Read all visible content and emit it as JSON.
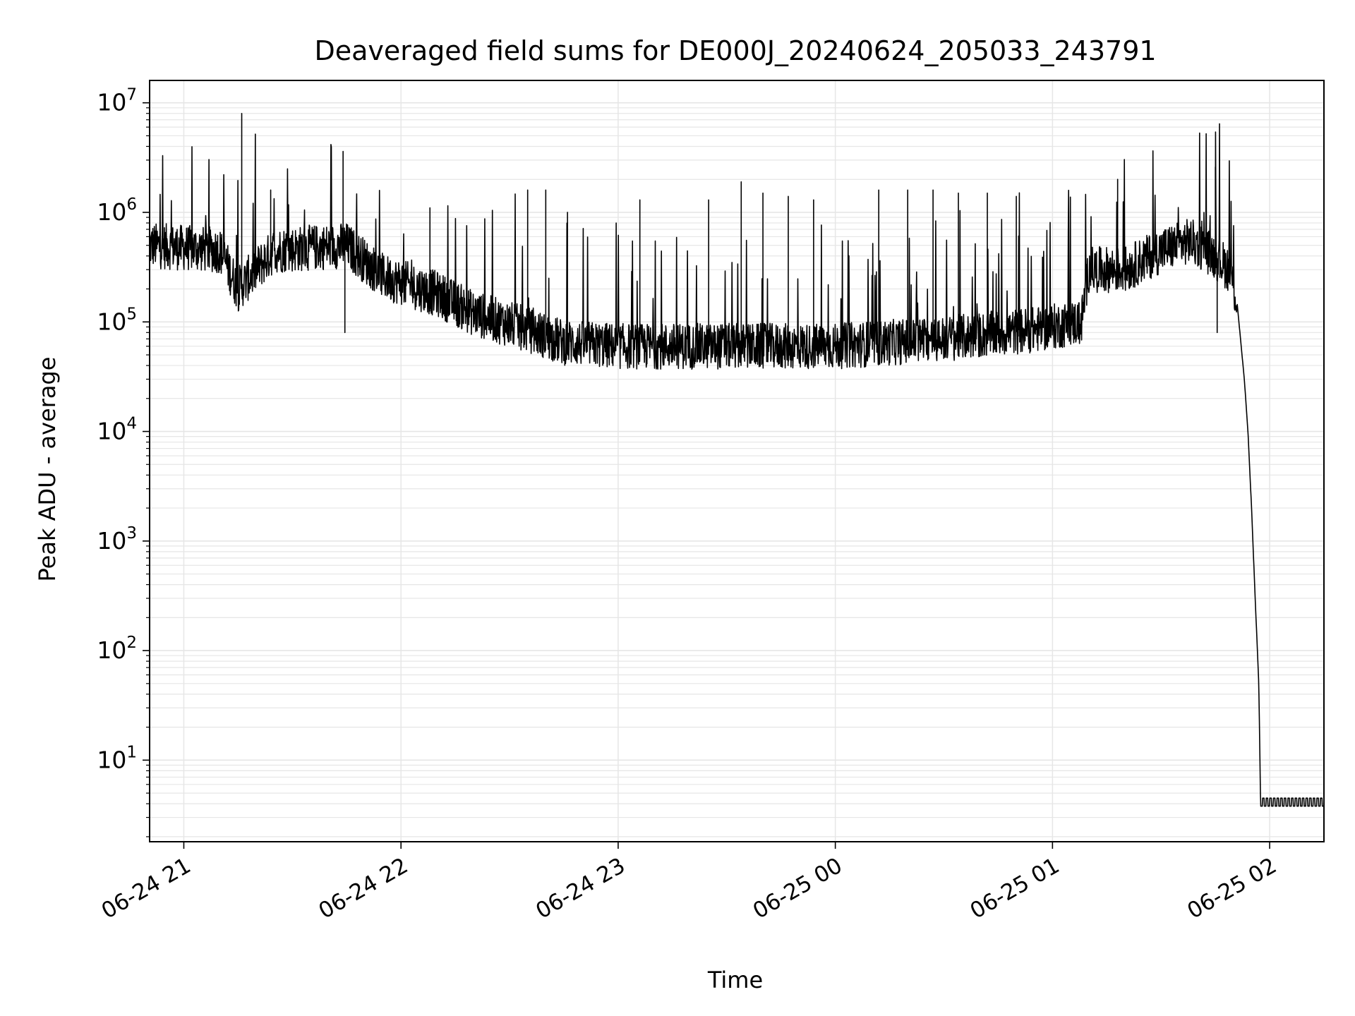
{
  "chart_data": {
    "type": "line",
    "title": "Deaveraged field sums for DE000J_20240624_205033_243791",
    "xlabel": "Time",
    "ylabel": "Peak ADU - average",
    "yscale": "log",
    "xlim": [
      "2024-06-24 20:50:33",
      "2024-06-25 02:15:00"
    ],
    "ylim": [
      1.8,
      16000000
    ],
    "grid": true,
    "grid_minor": true,
    "line_color": "#000000",
    "grid_color": "#e6e6e6",
    "x_ticks": [
      {
        "label": "06-24 21",
        "value": "2024-06-24 21:00"
      },
      {
        "label": "06-24 22",
        "value": "2024-06-24 22:00"
      },
      {
        "label": "06-24 23",
        "value": "2024-06-24 23:00"
      },
      {
        "label": "06-25 00",
        "value": "2024-06-25 00:00"
      },
      {
        "label": "06-25 01",
        "value": "2024-06-25 01:00"
      },
      {
        "label": "06-25 02",
        "value": "2024-06-25 02:00"
      }
    ],
    "y_ticks": [
      {
        "base": "10",
        "exp": "1",
        "value": 10
      },
      {
        "base": "10",
        "exp": "2",
        "value": 100
      },
      {
        "base": "10",
        "exp": "3",
        "value": 1000
      },
      {
        "base": "10",
        "exp": "4",
        "value": 10000
      },
      {
        "base": "10",
        "exp": "5",
        "value": 100000
      },
      {
        "base": "10",
        "exp": "6",
        "value": 1000000
      },
      {
        "base": "10",
        "exp": "7",
        "value": 10000000
      }
    ],
    "series": [
      {
        "baseline": [
          [
            "2024-06-24 20:50:33",
            500000
          ],
          [
            "2024-06-24 21:10",
            450000
          ],
          [
            "2024-06-24 21:15",
            200000
          ],
          [
            "2024-06-24 21:25",
            450000
          ],
          [
            "2024-06-24 21:45",
            500000
          ],
          [
            "2024-06-24 21:55",
            260000
          ],
          [
            "2024-06-24 22:10",
            180000
          ],
          [
            "2024-06-24 22:20",
            120000
          ],
          [
            "2024-06-24 22:35",
            85000
          ],
          [
            "2024-06-24 22:45",
            65000
          ],
          [
            "2024-06-24 23:00",
            60000
          ],
          [
            "2024-06-24 23:30",
            60000
          ],
          [
            "2024-06-25 00:00",
            60000
          ],
          [
            "2024-06-25 00:30",
            70000
          ],
          [
            "2024-06-25 00:55",
            85000
          ],
          [
            "2024-06-25 01:08",
            100000
          ],
          [
            "2024-06-25 01:10",
            300000
          ],
          [
            "2024-06-25 01:20",
            300000
          ],
          [
            "2024-06-25 01:30",
            450000
          ],
          [
            "2024-06-25 01:38",
            550000
          ],
          [
            "2024-06-25 01:44",
            420000
          ],
          [
            "2024-06-25 01:49",
            300000
          ],
          [
            "2024-06-25 01:51",
            150000
          ],
          [
            "2024-06-25 01:53",
            30000
          ],
          [
            "2024-06-25 01:54",
            10000
          ],
          [
            "2024-06-25 01:55",
            2000
          ],
          [
            "2024-06-25 01:56",
            300
          ],
          [
            "2024-06-25 01:57",
            50
          ],
          [
            "2024-06-25 01:57:30",
            3.8
          ],
          [
            "2024-06-25 02:15",
            3.8
          ]
        ],
        "spikes": [
          [
            "2024-06-24 21:16",
            8000000
          ],
          [
            "2024-06-24 21:24",
            1600000
          ],
          [
            "2024-06-24 21:44",
            3600000
          ],
          [
            "2024-06-24 21:44:30",
            80000
          ],
          [
            "2024-06-24 22:08",
            1100000
          ],
          [
            "2024-06-24 22:35",
            1600000
          ],
          [
            "2024-06-24 22:40",
            1600000
          ],
          [
            "2024-06-24 22:46",
            1000000
          ],
          [
            "2024-06-24 23:06",
            1300000
          ],
          [
            "2024-06-24 23:25",
            1300000
          ],
          [
            "2024-06-24 23:34",
            1900000
          ],
          [
            "2024-06-24 23:40",
            1500000
          ],
          [
            "2024-06-24 23:47",
            1400000
          ],
          [
            "2024-06-24 23:54",
            1300000
          ],
          [
            "2024-06-25 00:12",
            1600000
          ],
          [
            "2024-06-25 00:20",
            1600000
          ],
          [
            "2024-06-25 00:27",
            1600000
          ],
          [
            "2024-06-25 00:34",
            1500000
          ],
          [
            "2024-06-25 00:42",
            1500000
          ],
          [
            "2024-06-25 00:50",
            1400000
          ],
          [
            "2024-06-25 01:18",
            2000000
          ],
          [
            "2024-06-25 01:45",
            2600000
          ],
          [
            "2024-06-25 01:45:30",
            80000
          ]
        ]
      }
    ]
  }
}
